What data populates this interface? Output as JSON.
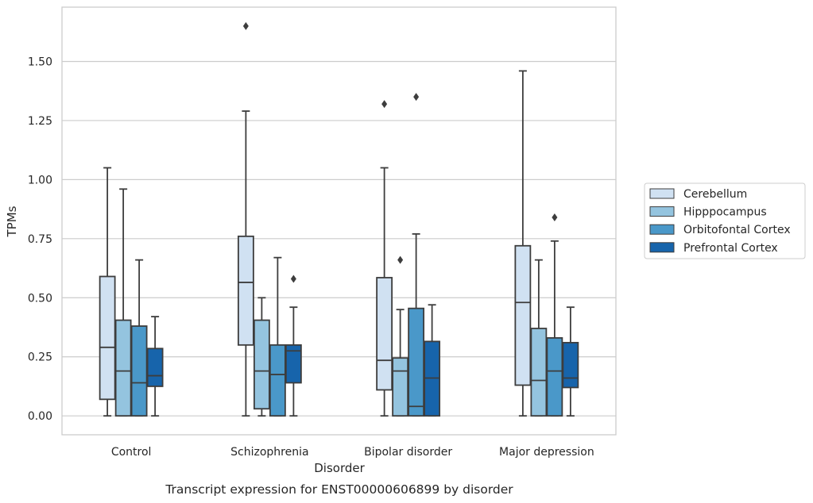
{
  "caption": "Transcript expression for ENST00000606899 by disorder",
  "chart_data": {
    "type": "box",
    "xlabel": "Disorder",
    "ylabel": "TPMs",
    "ylim": [
      -0.08,
      1.73
    ],
    "yticks": [
      0.0,
      0.25,
      0.5,
      0.75,
      1.0,
      1.25,
      1.5
    ],
    "ytick_labels": [
      "0.00",
      "0.25",
      "0.50",
      "0.75",
      "1.00",
      "1.25",
      "1.50"
    ],
    "grid": true,
    "legend_position": "right",
    "categories": [
      "Control",
      "Schizophrenia",
      "Bipolar disorder",
      "Major depression"
    ],
    "series": [
      {
        "name": "Cerebellum",
        "color": "#d0e1f2",
        "boxes": [
          {
            "whislo": 0.0,
            "q1": 0.07,
            "med": 0.29,
            "q3": 0.59,
            "whishi": 1.05,
            "fliers": []
          },
          {
            "whislo": 0.0,
            "q1": 0.3,
            "med": 0.565,
            "q3": 0.76,
            "whishi": 1.29,
            "fliers": [
              1.65
            ]
          },
          {
            "whislo": 0.0,
            "q1": 0.11,
            "med": 0.235,
            "q3": 0.585,
            "whishi": 1.05,
            "fliers": [
              1.32
            ]
          },
          {
            "whislo": 0.0,
            "q1": 0.13,
            "med": 0.48,
            "q3": 0.72,
            "whishi": 1.46,
            "fliers": []
          }
        ]
      },
      {
        "name": "Hipppocampus",
        "color": "#94c4df",
        "boxes": [
          {
            "whislo": 0.0,
            "q1": 0.0,
            "med": 0.19,
            "q3": 0.405,
            "whishi": 0.96,
            "fliers": []
          },
          {
            "whislo": 0.0,
            "q1": 0.03,
            "med": 0.19,
            "q3": 0.405,
            "whishi": 0.5,
            "fliers": []
          },
          {
            "whislo": 0.0,
            "q1": 0.0,
            "med": 0.19,
            "q3": 0.245,
            "whishi": 0.45,
            "fliers": [
              0.66
            ]
          },
          {
            "whislo": 0.0,
            "q1": 0.0,
            "med": 0.15,
            "q3": 0.37,
            "whishi": 0.66,
            "fliers": []
          }
        ]
      },
      {
        "name": "Orbitofontal Cortex",
        "color": "#4a98c9",
        "boxes": [
          {
            "whislo": 0.0,
            "q1": 0.0,
            "med": 0.14,
            "q3": 0.38,
            "whishi": 0.66,
            "fliers": []
          },
          {
            "whislo": 0.0,
            "q1": 0.0,
            "med": 0.175,
            "q3": 0.3,
            "whishi": 0.67,
            "fliers": []
          },
          {
            "whislo": 0.0,
            "q1": 0.0,
            "med": 0.04,
            "q3": 0.455,
            "whishi": 0.77,
            "fliers": [
              1.35
            ]
          },
          {
            "whislo": 0.0,
            "q1": 0.0,
            "med": 0.19,
            "q3": 0.33,
            "whishi": 0.74,
            "fliers": [
              0.84
            ]
          }
        ]
      },
      {
        "name": "Prefrontal Cortex",
        "color": "#1764ab",
        "boxes": [
          {
            "whislo": 0.0,
            "q1": 0.125,
            "med": 0.17,
            "q3": 0.285,
            "whishi": 0.42,
            "fliers": []
          },
          {
            "whislo": 0.0,
            "q1": 0.14,
            "med": 0.275,
            "q3": 0.3,
            "whishi": 0.46,
            "fliers": [
              0.58
            ]
          },
          {
            "whislo": 0.0,
            "q1": 0.0,
            "med": 0.16,
            "q3": 0.315,
            "whishi": 0.47,
            "fliers": []
          },
          {
            "whislo": 0.0,
            "q1": 0.12,
            "med": 0.16,
            "q3": 0.31,
            "whishi": 0.46,
            "fliers": []
          }
        ]
      }
    ]
  }
}
